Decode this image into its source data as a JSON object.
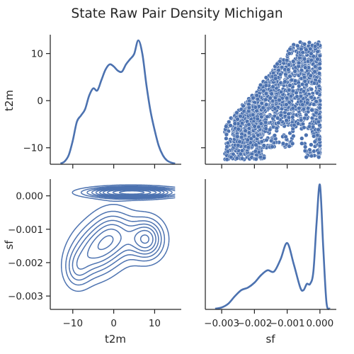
{
  "chart_data": {
    "type": "pairplot",
    "title": "State Raw Pair Density Michigan",
    "variables": [
      "t2m",
      "sf"
    ],
    "series_color": "#4c72b0",
    "panels": {
      "t2m_kde": {
        "type": "line",
        "x_range": [
          -15.5,
          16.5
        ],
        "x": [
          -13,
          -12,
          -11,
          -10,
          -9,
          -8,
          -7,
          -6,
          -5,
          -4,
          -3,
          -2,
          -1,
          0,
          1,
          2,
          3,
          4,
          5,
          6,
          7,
          8,
          9,
          10,
          11,
          12,
          13,
          14,
          15
        ],
        "density": [
          0.0,
          0.02,
          0.08,
          0.22,
          0.4,
          0.46,
          0.52,
          0.65,
          0.72,
          0.7,
          0.8,
          0.9,
          0.95,
          0.93,
          0.89,
          0.88,
          0.95,
          1.0,
          1.05,
          1.18,
          1.05,
          0.75,
          0.5,
          0.32,
          0.17,
          0.08,
          0.03,
          0.01,
          0.0
        ]
      },
      "sf_vs_t2m_scatter": {
        "type": "scatter",
        "xlabel": "sf",
        "ylabel": "t2m",
        "x_range": [
          -0.0035,
          0.0005
        ],
        "y_range": [
          -13.5,
          14
        ],
        "cloud": [
          {
            "sf": [
              -0.0029,
              -0.0017
            ],
            "t2m": [
              -12.5,
              -3
            ]
          },
          {
            "sf": [
              -0.0026,
              -0.0008
            ],
            "t2m": [
              -10,
              3
            ]
          },
          {
            "sf": [
              -0.0022,
              -0.0003
            ],
            "t2m": [
              -6,
              9
            ]
          },
          {
            "sf": [
              -0.0015,
              0.0
            ],
            "t2m": [
              -2,
              12.5
            ]
          },
          {
            "sf": [
              -0.0006,
              0.0
            ],
            "t2m": [
              -12,
              12.5
            ]
          }
        ]
      },
      "t2m_vs_sf_kde2d": {
        "type": "contour",
        "xlabel": "t2m",
        "ylabel": "sf",
        "x_range": [
          -15.5,
          16.5
        ],
        "y_range": [
          -0.0034,
          0.0005
        ],
        "peaks": [
          {
            "t2m": 4.5,
            "sf": 0.0001,
            "w_t2m": 6.5,
            "w_sf": 0.0001,
            "weight": 1.0
          },
          {
            "t2m": 8,
            "sf": -0.0013,
            "w_t2m": 2.8,
            "w_sf": 0.0004,
            "weight": 0.55
          },
          {
            "t2m": 0,
            "sf": -0.0012,
            "w_t2m": 3.5,
            "w_sf": 0.0005,
            "weight": 0.45
          },
          {
            "t2m": -5,
            "sf": -0.0017,
            "w_t2m": 3.5,
            "w_sf": 0.0005,
            "weight": 0.4
          },
          {
            "t2m": -9,
            "sf": -0.0022,
            "w_t2m": 2.2,
            "w_sf": 0.0004,
            "weight": 0.25
          }
        ],
        "levels": [
          0.08,
          0.16,
          0.24,
          0.32,
          0.4,
          0.48,
          0.56,
          0.66,
          0.78,
          0.9
        ]
      },
      "sf_kde": {
        "type": "line",
        "x_range": [
          -0.0035,
          0.0005
        ],
        "x": [
          -0.0032,
          -0.003,
          -0.0028,
          -0.0026,
          -0.0024,
          -0.0022,
          -0.002,
          -0.0018,
          -0.0016,
          -0.0014,
          -0.0012,
          -0.001,
          -0.0008,
          -0.0006,
          -0.0005,
          -0.0004,
          -0.0003,
          -0.0002,
          -0.0001,
          0.0,
          0.0001,
          0.0002,
          0.0003
        ],
        "density": [
          0.0,
          0.01,
          0.04,
          0.1,
          0.15,
          0.17,
          0.21,
          0.27,
          0.31,
          0.3,
          0.4,
          0.53,
          0.36,
          0.17,
          0.15,
          0.2,
          0.2,
          0.3,
          0.7,
          1.0,
          0.5,
          0.05,
          0.0
        ]
      }
    },
    "axes": {
      "t2m_ticks": [
        "10",
        "0",
        "−10"
      ],
      "t2m_tick_values": [
        10,
        0,
        -10
      ],
      "t2m_x_ticks": [
        "−10",
        "0",
        "10"
      ],
      "t2m_x_tick_values": [
        -10,
        0,
        10
      ],
      "sf_ticks": [
        "0.000",
        "−0.001",
        "−0.002",
        "−0.003"
      ],
      "sf_tick_values": [
        0.0,
        -0.001,
        -0.002,
        -0.003
      ],
      "sf_x_ticks": [
        "−0.003",
        "−0.002",
        "−0.001",
        "0.000"
      ],
      "sf_x_tick_values": [
        -0.003,
        -0.002,
        -0.001,
        0.0
      ],
      "x_labels": [
        "t2m",
        "sf"
      ],
      "y_labels": [
        "t2m",
        "sf"
      ]
    }
  }
}
